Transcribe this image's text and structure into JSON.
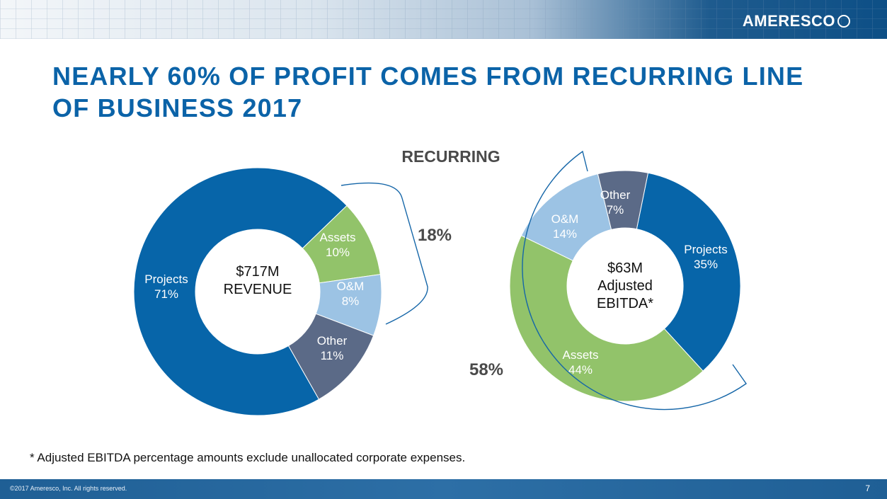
{
  "header": {
    "logo_text": "AMERESCO",
    "banner_colors": [
      "#e9eef3",
      "#0d4f86"
    ]
  },
  "title": "NEARLY 60% OF PROFIT COMES FROM RECURRING LINE OF BUSINESS 2017",
  "recurring_label": "RECURRING",
  "footnote": "* Adjusted EBITDA percentage amounts exclude unallocated corporate expenses.",
  "footer": {
    "copyright": "©2017 Ameresco, Inc. All rights reserved.",
    "page_number": "7"
  },
  "colors": {
    "title": "#0b63a8",
    "projects": "#0765a9",
    "assets": "#92c36a",
    "om": "#9cc3e4",
    "other": "#5b6a87",
    "bracket": "#1566a8"
  },
  "chart_data": [
    {
      "type": "pie",
      "center_label": [
        "$717M",
        "REVENUE"
      ],
      "slices": [
        {
          "label": "Assets",
          "value": 10,
          "value_label": "10%",
          "color": "#92c36a"
        },
        {
          "label": "O&M",
          "value": 8,
          "value_label": "8%",
          "color": "#9cc3e4"
        },
        {
          "label": "Other",
          "value": 11,
          "value_label": "11%",
          "color": "#5b6a87"
        },
        {
          "label": "Projects",
          "value": 71,
          "value_label": "71%",
          "color": "#0765a9"
        }
      ],
      "bracket_label": "18%"
    },
    {
      "type": "pie",
      "center_label": [
        "$63M",
        "Adjusted",
        "EBITDA*"
      ],
      "slices": [
        {
          "label": "Projects",
          "value": 35,
          "value_label": "35%",
          "color": "#0765a9"
        },
        {
          "label": "Assets",
          "value": 44,
          "value_label": "44%",
          "color": "#92c36a"
        },
        {
          "label": "O&M",
          "value": 14,
          "value_label": "14%",
          "color": "#9cc3e4"
        },
        {
          "label": "Other",
          "value": 7,
          "value_label": "7%",
          "color": "#5b6a87"
        }
      ],
      "bracket_label": "58%"
    }
  ]
}
